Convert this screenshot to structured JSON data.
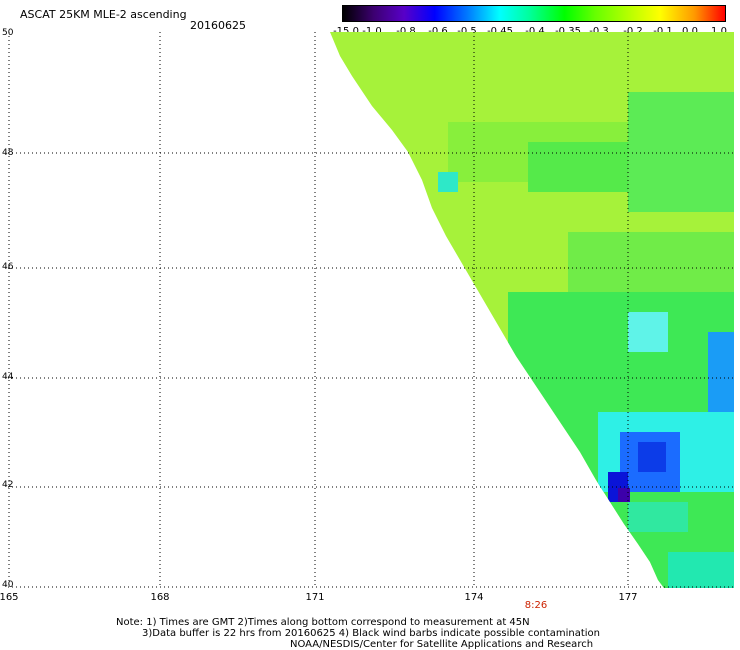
{
  "title": "ASCAT 25KM MLE-2 ascending",
  "date": "20160625",
  "colorbar": {
    "labels": [
      "-15.0",
      "-1.0",
      "-0.8",
      "-0.6",
      "-0.5",
      "-0.45",
      "-0.4",
      "-0.35",
      "-0.3",
      "-0.2",
      "-0.1",
      "0.0",
      "1.0"
    ]
  },
  "map": {
    "lat_labels": [
      "50",
      "48",
      "46",
      "44",
      "42",
      "40"
    ],
    "lon_labels": [
      "165",
      "168",
      "171",
      "174",
      "177"
    ],
    "time_label": "8:26",
    "lat_range": [
      40,
      50
    ],
    "lon_range": [
      165,
      179
    ]
  },
  "notes": {
    "line1": "Note: 1) Times are GMT 2)Times along bottom correspond to measurement at 45N",
    "line2": "3)Data buffer is 22 hrs from 20160625 4) Black wind barbs indicate possible contamination",
    "line3": "NOAA/NESDIS/Center for Satellite Applications and Research"
  }
}
